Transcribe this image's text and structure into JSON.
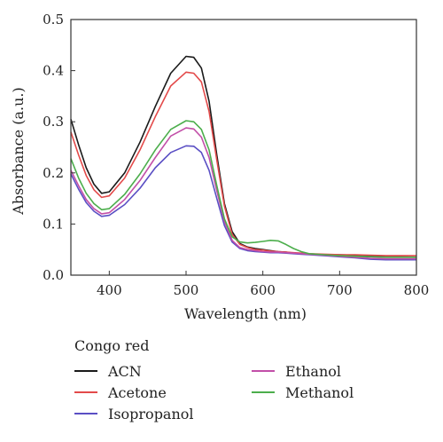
{
  "chart_data": {
    "type": "line",
    "title": "",
    "xlabel": "Wavelength (nm)",
    "ylabel": "Absorbance (a.u.)",
    "xlim": [
      350,
      800
    ],
    "ylim": [
      0.0,
      0.5
    ],
    "xticks": [
      400,
      500,
      600,
      700,
      800
    ],
    "yticks": [
      0.0,
      0.1,
      0.2,
      0.3,
      0.4,
      0.5
    ],
    "grid": false,
    "legend_title": "Congo red",
    "legend_position": "below",
    "x": [
      350,
      360,
      370,
      380,
      390,
      400,
      420,
      440,
      460,
      480,
      500,
      510,
      520,
      530,
      540,
      550,
      560,
      570,
      580,
      590,
      600,
      610,
      620,
      630,
      640,
      650,
      660,
      680,
      700,
      720,
      740,
      760,
      780,
      800
    ],
    "series": [
      {
        "name": "ACN",
        "color": "#1a1a1a",
        "values": [
          0.305,
          0.255,
          0.21,
          0.178,
          0.16,
          0.163,
          0.2,
          0.26,
          0.33,
          0.395,
          0.428,
          0.426,
          0.405,
          0.34,
          0.235,
          0.14,
          0.085,
          0.062,
          0.055,
          0.052,
          0.05,
          0.048,
          0.046,
          0.045,
          0.043,
          0.042,
          0.041,
          0.04,
          0.04,
          0.039,
          0.037,
          0.036,
          0.036,
          0.035
        ]
      },
      {
        "name": "Acetone",
        "color": "#e34a4a",
        "values": [
          0.28,
          0.235,
          0.195,
          0.167,
          0.152,
          0.155,
          0.19,
          0.245,
          0.31,
          0.37,
          0.397,
          0.395,
          0.378,
          0.32,
          0.225,
          0.135,
          0.08,
          0.06,
          0.054,
          0.05,
          0.049,
          0.047,
          0.046,
          0.045,
          0.044,
          0.043,
          0.042,
          0.041,
          0.04,
          0.04,
          0.039,
          0.038,
          0.038,
          0.038
        ]
      },
      {
        "name": "Isopropanol",
        "color": "#5a4fc4",
        "values": [
          0.198,
          0.168,
          0.142,
          0.125,
          0.115,
          0.117,
          0.138,
          0.17,
          0.21,
          0.24,
          0.253,
          0.252,
          0.24,
          0.205,
          0.15,
          0.097,
          0.065,
          0.052,
          0.048,
          0.046,
          0.045,
          0.044,
          0.044,
          0.043,
          0.042,
          0.041,
          0.04,
          0.038,
          0.036,
          0.034,
          0.031,
          0.03,
          0.03,
          0.03
        ]
      },
      {
        "name": "Ethanol",
        "color": "#c24fa8",
        "values": [
          0.205,
          0.175,
          0.148,
          0.13,
          0.12,
          0.122,
          0.148,
          0.185,
          0.23,
          0.272,
          0.288,
          0.286,
          0.27,
          0.23,
          0.165,
          0.105,
          0.068,
          0.054,
          0.05,
          0.048,
          0.046,
          0.045,
          0.045,
          0.044,
          0.043,
          0.042,
          0.041,
          0.039,
          0.037,
          0.035,
          0.033,
          0.032,
          0.032,
          0.032
        ]
      },
      {
        "name": "Methanol",
        "color": "#4cae4c",
        "values": [
          0.228,
          0.19,
          0.16,
          0.14,
          0.128,
          0.13,
          0.158,
          0.198,
          0.245,
          0.285,
          0.302,
          0.3,
          0.285,
          0.245,
          0.175,
          0.11,
          0.075,
          0.065,
          0.063,
          0.064,
          0.066,
          0.068,
          0.067,
          0.06,
          0.052,
          0.046,
          0.042,
          0.04,
          0.038,
          0.037,
          0.036,
          0.035,
          0.035,
          0.035
        ]
      }
    ]
  }
}
